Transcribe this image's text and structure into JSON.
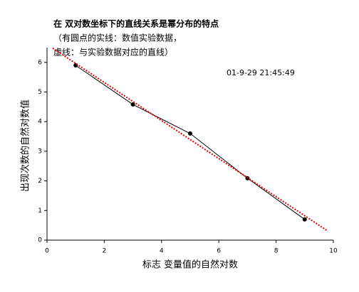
{
  "chart_data": {
    "type": "line",
    "title": "在 双对数坐标下的直线关系是幂分布的特点",
    "subtitle": [
      "（有圆点的实线：数值实验数据，",
      "虚线：与实验数据对应的直线）"
    ],
    "annotation": "01-9-29 21:45:49",
    "x_label": "标志 变量值的自然对数",
    "y_label": "出现次数的自然对数值",
    "xlim": [
      0,
      10
    ],
    "ylim": [
      0,
      6.5
    ],
    "xticks": [
      0,
      2,
      4,
      6,
      8,
      10
    ],
    "yticks": [
      0,
      1,
      2,
      3,
      4,
      5,
      6
    ],
    "series": [
      {
        "name": "数值实验数据",
        "color": "#000000",
        "style": "solid",
        "markers": true,
        "x": [
          1,
          3,
          5,
          7,
          9
        ],
        "values": [
          5.9,
          4.58,
          3.6,
          2.09,
          0.7
        ]
      },
      {
        "name": "对应的直线",
        "color": "#e00000",
        "style": "dotted",
        "markers": false,
        "x": [
          0.2,
          9.8
        ],
        "values": [
          6.48,
          0.31
        ]
      }
    ]
  }
}
